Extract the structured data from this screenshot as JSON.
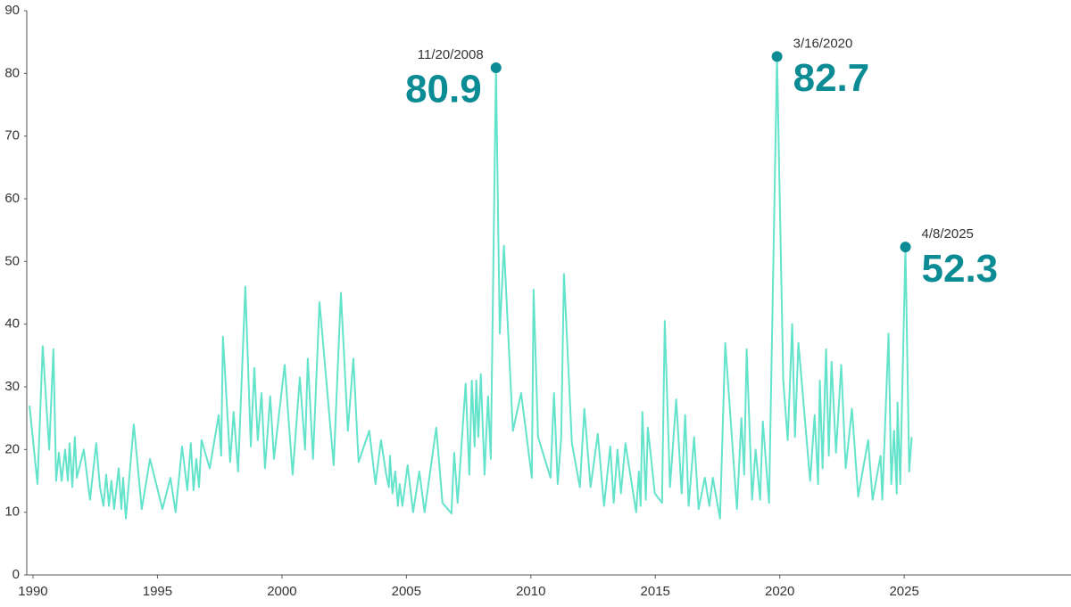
{
  "chart_data": {
    "type": "line",
    "color": "#64e3cb",
    "annotation_color": "#0b8b94",
    "xlim": [
      1989.75,
      2031.7
    ],
    "ylim": [
      0,
      90
    ],
    "xticks": [
      1990,
      1995,
      2000,
      2005,
      2010,
      2015,
      2020,
      2025
    ],
    "yticks": [
      0,
      10,
      20,
      30,
      40,
      50,
      60,
      70,
      80,
      90
    ],
    "grid": false,
    "x": [
      1989.86,
      1990.18,
      1990.39,
      1990.65,
      1990.82,
      1990.93,
      1991.04,
      1991.15,
      1991.29,
      1991.4,
      1991.47,
      1991.58,
      1991.68,
      1991.76,
      1992.04,
      1992.29,
      1992.54,
      1992.69,
      1992.83,
      1992.94,
      1993.05,
      1993.15,
      1993.26,
      1993.44,
      1993.55,
      1993.62,
      1993.73,
      1994.05,
      1994.37,
      1994.7,
      1995.2,
      1995.52,
      1995.73,
      1995.99,
      1996.2,
      1996.34,
      1996.45,
      1996.56,
      1996.67,
      1996.77,
      1997.1,
      1997.46,
      1997.56,
      1997.63,
      1997.92,
      1998.06,
      1998.24,
      1998.53,
      1998.75,
      1998.89,
      1999.03,
      1999.18,
      1999.32,
      1999.53,
      1999.68,
      2000.11,
      2000.43,
      2000.72,
      2000.93,
      2001.04,
      2001.25,
      2001.51,
      2002.08,
      2002.37,
      2002.65,
      2002.87,
      2003.08,
      2003.51,
      2003.76,
      2003.98,
      2004.19,
      2004.3,
      2004.34,
      2004.44,
      2004.55,
      2004.66,
      2004.73,
      2004.84,
      2005.05,
      2005.27,
      2005.52,
      2005.73,
      2006.2,
      2006.45,
      2006.81,
      2006.92,
      2007.06,
      2007.38,
      2007.53,
      2007.63,
      2007.74,
      2007.81,
      2007.89,
      2007.99,
      2008.14,
      2008.28,
      2008.39,
      2008.6,
      2008.75,
      2008.92,
      2009.28,
      2009.61,
      2010.04,
      2010.11,
      2010.29,
      2010.79,
      2010.93,
      2011.08,
      2011.22,
      2011.33,
      2011.65,
      2011.97,
      2012.15,
      2012.4,
      2012.69,
      2012.94,
      2013.19,
      2013.33,
      2013.48,
      2013.62,
      2013.8,
      2014.23,
      2014.34,
      2014.41,
      2014.48,
      2014.62,
      2014.7,
      2014.98,
      2015.27,
      2015.38,
      2015.59,
      2015.84,
      2016.06,
      2016.2,
      2016.34,
      2016.56,
      2016.74,
      2016.99,
      2017.17,
      2017.31,
      2017.6,
      2017.81,
      2018.28,
      2018.46,
      2018.57,
      2018.67,
      2018.89,
      2019.03,
      2019.21,
      2019.32,
      2019.57,
      2019.89,
      2020.14,
      2020.32,
      2020.5,
      2020.61,
      2020.75,
      2021.22,
      2021.4,
      2021.54,
      2021.61,
      2021.72,
      2021.86,
      2021.97,
      2022.08,
      2022.26,
      2022.47,
      2022.65,
      2022.9,
      2023.15,
      2023.55,
      2023.73,
      2024.05,
      2024.12,
      2024.37,
      2024.48,
      2024.59,
      2024.7,
      2024.73,
      2024.84,
      2025.05,
      2025.2,
      2025.3
    ],
    "values": [
      27,
      14.5,
      36.5,
      20,
      36,
      15,
      19.5,
      15,
      20,
      15,
      21,
      14,
      22,
      15.5,
      20,
      12,
      21,
      14,
      11,
      16,
      11,
      15,
      10.5,
      17,
      10.5,
      15.5,
      9,
      24,
      10.5,
      18.5,
      10.5,
      15.5,
      10,
      20.5,
      13.5,
      21,
      13.5,
      18.5,
      14,
      21.5,
      17,
      25.5,
      19,
      38,
      18,
      26,
      16.5,
      46,
      20.5,
      33,
      21.5,
      29,
      17,
      28.5,
      18.5,
      33.5,
      16,
      31.5,
      20,
      34.5,
      18.5,
      43.5,
      17.5,
      45,
      23,
      34.5,
      18,
      23,
      14.5,
      21.5,
      16,
      14,
      19,
      13,
      16.5,
      11,
      14.5,
      11,
      17.5,
      10,
      16.5,
      10,
      23.5,
      11.5,
      9.8,
      19.5,
      11.5,
      30.5,
      16,
      31,
      20.5,
      31,
      22,
      32,
      16,
      28.5,
      18.5,
      80.9,
      38.5,
      52.5,
      23,
      29,
      15.5,
      45.5,
      22,
      15.5,
      29,
      14.5,
      22,
      48,
      21,
      14,
      26.5,
      14,
      22.5,
      11,
      20.5,
      11.5,
      20,
      13,
      21,
      10,
      16.5,
      11,
      26,
      12,
      23.5,
      13,
      11.5,
      40.5,
      14,
      28,
      13,
      25.5,
      11,
      22,
      10.5,
      15.5,
      11,
      15.5,
      9,
      37,
      10.5,
      25,
      16,
      36,
      12,
      20,
      12,
      24.5,
      11.5,
      82.7,
      31,
      21.5,
      40,
      22,
      37,
      15,
      25.5,
      14.5,
      31,
      17,
      36,
      19,
      34,
      19.5,
      33.5,
      17,
      26.5,
      12.5,
      21.5,
      12,
      19,
      12,
      38.5,
      14.5,
      23,
      13,
      27.5,
      14.5,
      52.3,
      16.5,
      22
    ],
    "annotations": [
      {
        "label": "11/20/2008",
        "x": 2008.6,
        "value": 80.9
      },
      {
        "label": "3/16/2020",
        "x": 2019.89,
        "value": 82.7
      },
      {
        "label": "4/8/2025",
        "x": 2025.05,
        "value": 52.3
      }
    ]
  }
}
